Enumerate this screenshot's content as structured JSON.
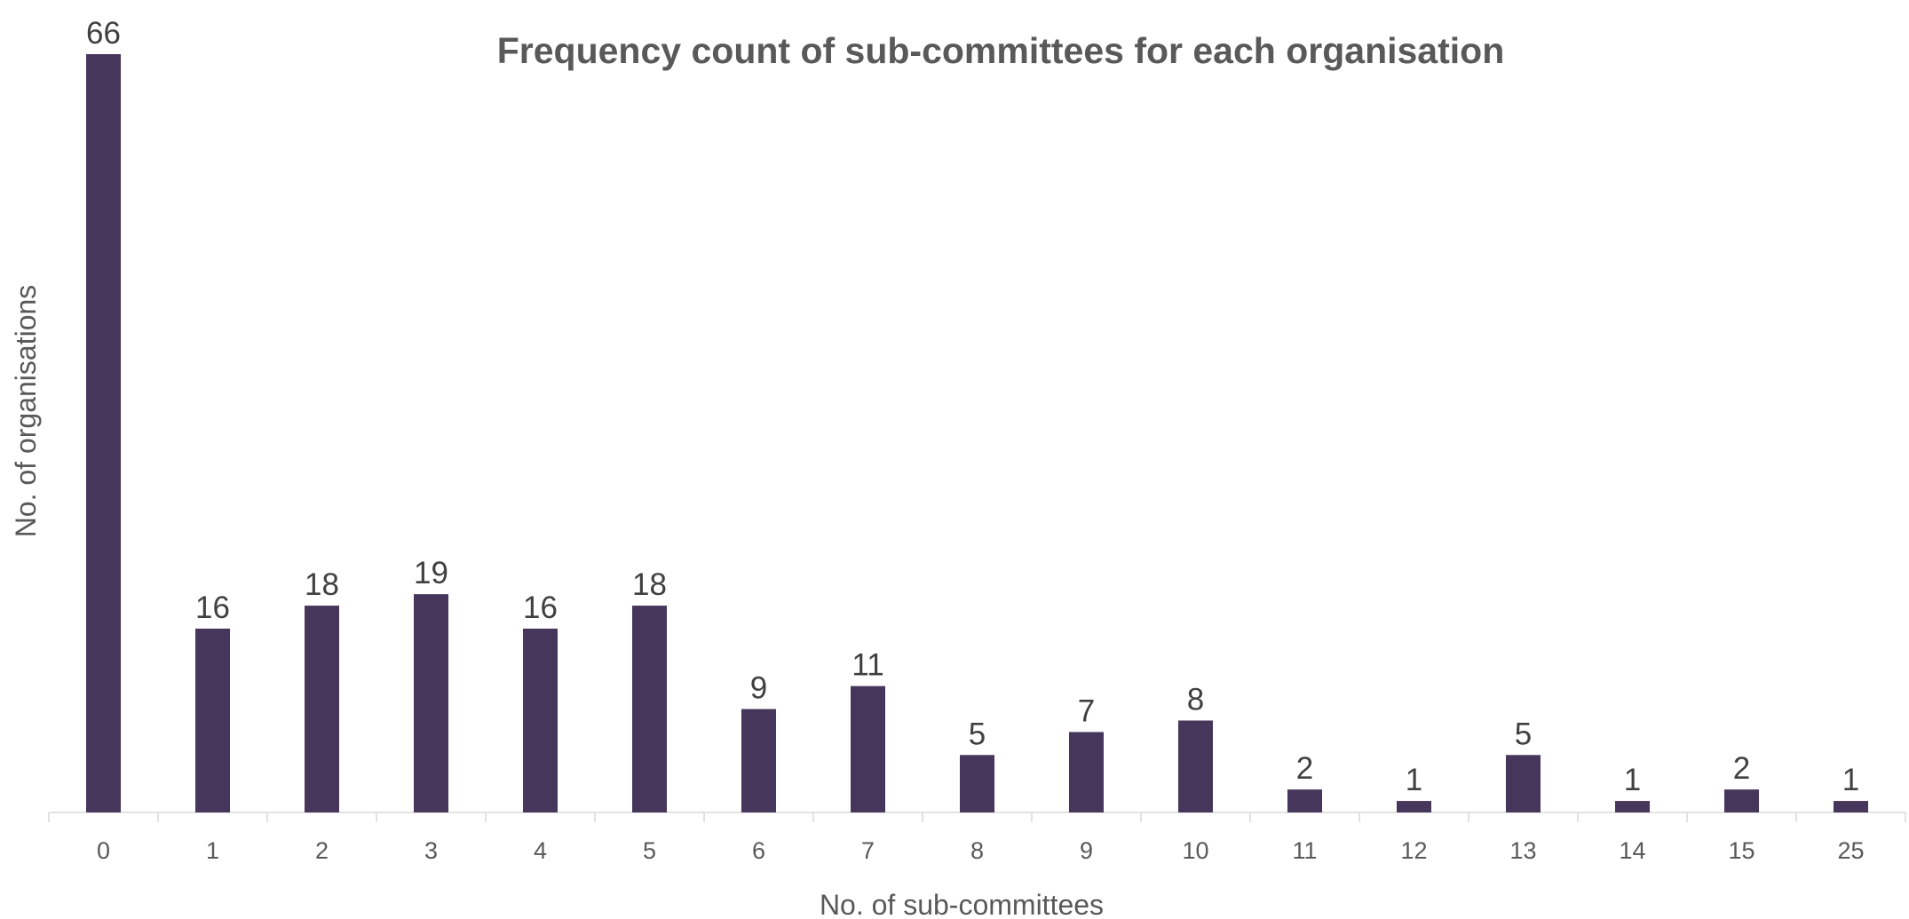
{
  "chart_data": {
    "type": "bar",
    "title": "Frequency count of sub-committees for each organisation",
    "xlabel": "No. of sub-committees",
    "ylabel": "No. of organisations",
    "categories": [
      "0",
      "1",
      "2",
      "3",
      "4",
      "5",
      "6",
      "7",
      "8",
      "9",
      "10",
      "11",
      "12",
      "13",
      "14",
      "15",
      "25"
    ],
    "values": [
      66,
      16,
      18,
      19,
      16,
      18,
      9,
      11,
      5,
      7,
      8,
      2,
      1,
      5,
      1,
      2,
      1
    ],
    "ylim": [
      0,
      66
    ],
    "grid": false,
    "legend": "none",
    "data_labels": true,
    "bar_color": "#47365B",
    "axis_color": "#D9D9D9",
    "text_color": "#595959",
    "label_color": "#404040"
  }
}
